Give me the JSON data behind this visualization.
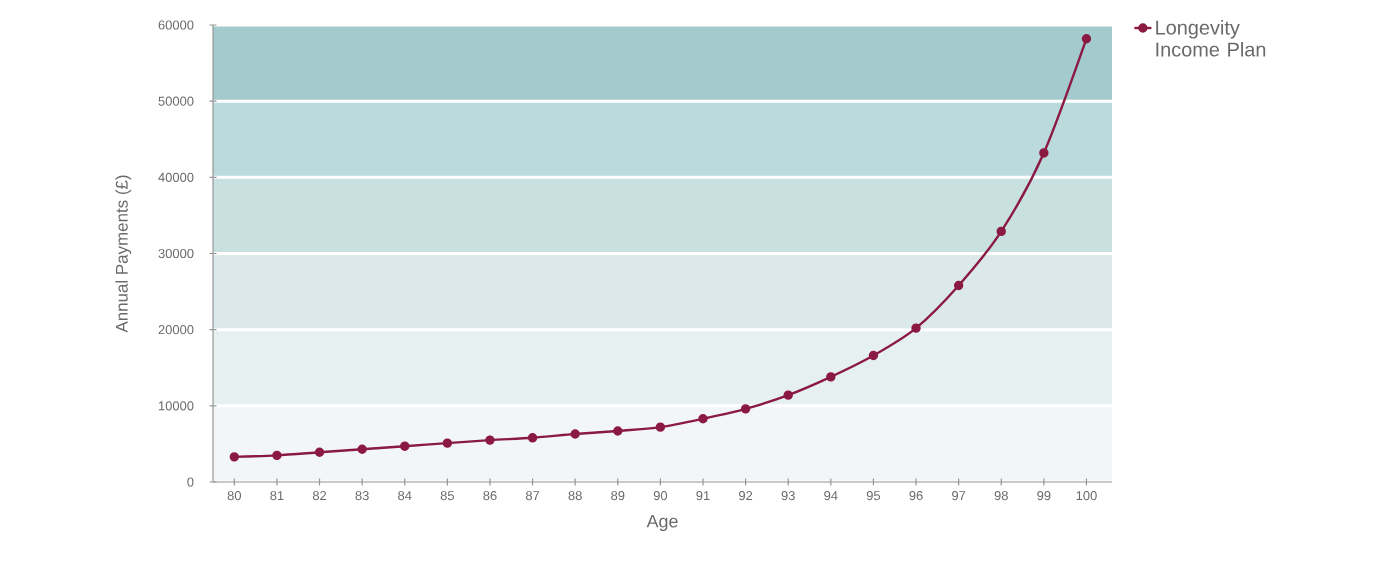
{
  "chart_data": {
    "type": "line",
    "xlabel": "Age",
    "ylabel": "Annual Payments (£)",
    "x": [
      80,
      81,
      82,
      83,
      84,
      85,
      86,
      87,
      88,
      89,
      90,
      91,
      92,
      93,
      94,
      95,
      96,
      97,
      98,
      99,
      100
    ],
    "series": [
      {
        "name": "Longevity Income Plan",
        "color": "#8b1a42",
        "values": [
          3300,
          3500,
          3900,
          4300,
          4700,
          5100,
          5500,
          5800,
          6300,
          6700,
          7200,
          8300,
          9600,
          11400,
          13800,
          16600,
          20200,
          25800,
          32900,
          43200,
          58200
        ]
      }
    ],
    "xlim": [
      79.5,
      100.6
    ],
    "xticks": [
      80,
      81,
      82,
      83,
      84,
      85,
      86,
      87,
      88,
      89,
      90,
      91,
      92,
      93,
      94,
      95,
      96,
      97,
      98,
      99,
      100
    ],
    "ylim": [
      0,
      60000
    ],
    "yticks": [
      0,
      10000,
      20000,
      30000,
      40000,
      50000,
      60000
    ],
    "bands": [
      {
        "axis": "y",
        "from": 0,
        "to": 10000,
        "color": "#f2f6f6"
      },
      {
        "axis": "y",
        "from": 10000,
        "to": 20000,
        "color": "#e7f0f0"
      },
      {
        "axis": "y",
        "from": 20000,
        "to": 30000,
        "color": "#dbe9ea"
      },
      {
        "axis": "y",
        "from": 30000,
        "to": 40000,
        "color": "#c9e0e1"
      },
      {
        "axis": "y",
        "from": 40000,
        "to": 50000,
        "color": "#bbdadb"
      },
      {
        "axis": "y",
        "from": 50000,
        "to": 60000,
        "color": "#a3cbcd"
      }
    ],
    "grid": "y",
    "legend": "top right",
    "marker": "circle",
    "line_style": "solid"
  }
}
